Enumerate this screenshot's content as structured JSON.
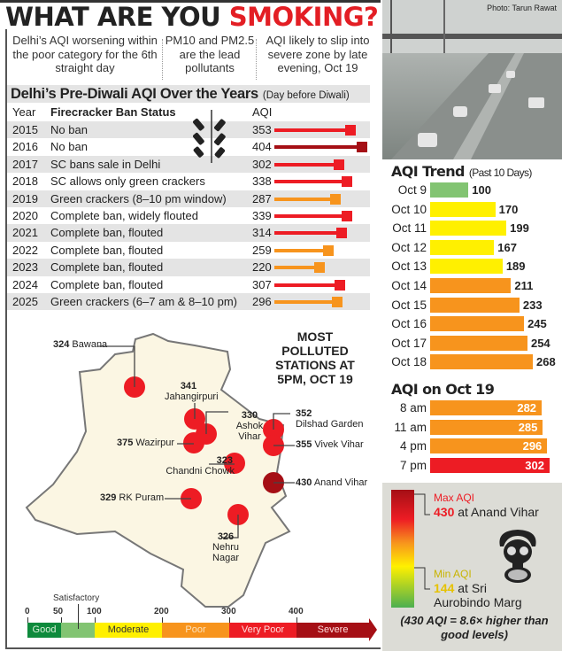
{
  "header": {
    "title_a": "WHAT ARE YOU ",
    "title_b": "SMOKING?"
  },
  "bullets": [
    "Delhi’s AQI worsening within the poor category for the 6th straight day",
    "PM10 and PM2.5 are the lead pollutants",
    "AQI likely to slip into severe zone by late evening, Oct 19"
  ],
  "photo": {
    "credit": "Photo: Tarun Rawat"
  },
  "colors": {
    "good": "#0e8a3c",
    "satisfactory": "#82c472",
    "moderate": "#fff000",
    "poor": "#f7941d",
    "very_poor": "#ed1c24",
    "severe": "#a50f15"
  },
  "chart_data": [
    {
      "type": "table",
      "title": "Delhi’s Pre-Diwali AQI Over the Years",
      "subtitle": "(Day before Diwali)",
      "columns": [
        "Year",
        "Firecracker Ban Status",
        "AQI"
      ],
      "rows": [
        {
          "year": "2015",
          "status": "No ban",
          "aqi": 353
        },
        {
          "year": "2016",
          "status": "No ban",
          "aqi": 404
        },
        {
          "year": "2017",
          "status": "SC bans sale in Delhi",
          "aqi": 302
        },
        {
          "year": "2018",
          "status": "SC allows only green crackers",
          "aqi": 338
        },
        {
          "year": "2019",
          "status": "Green crackers (8–10 pm window)",
          "aqi": 287
        },
        {
          "year": "2020",
          "status": "Complete ban, widely flouted",
          "aqi": 339
        },
        {
          "year": "2021",
          "status": "Complete ban, flouted",
          "aqi": 314
        },
        {
          "year": "2022",
          "status": "Complete ban, flouted",
          "aqi": 259
        },
        {
          "year": "2023",
          "status": "Complete ban, flouted",
          "aqi": 220
        },
        {
          "year": "2024",
          "status": "Complete ban, flouted",
          "aqi": 307
        },
        {
          "year": "2025",
          "status": "Green crackers (6–7 am & 8–10 pm)",
          "aqi": 296
        }
      ]
    },
    {
      "type": "bar",
      "title": "AQI Trend",
      "subtitle": "(Past 10 Days)",
      "categories": [
        "Oct 9",
        "Oct 10",
        "Oct 11",
        "Oct 12",
        "Oct 13",
        "Oct 14",
        "Oct 15",
        "Oct 16",
        "Oct 17",
        "Oct 18"
      ],
      "values": [
        100,
        170,
        199,
        167,
        189,
        211,
        233,
        245,
        254,
        268
      ]
    },
    {
      "type": "bar",
      "title": "AQI on Oct 19",
      "categories": [
        "8 am",
        "11 am",
        "4 pm",
        "7 pm"
      ],
      "values": [
        282,
        285,
        296,
        302
      ]
    },
    {
      "type": "scatter",
      "title": "MOST POLLUTED STATIONS AT 5PM, OCT 19",
      "stations": [
        {
          "name": "Bawana",
          "aqi": 324
        },
        {
          "name": "Jahangirpuri",
          "aqi": 341
        },
        {
          "name": "Ashok Vihar",
          "aqi": 330
        },
        {
          "name": "Wazirpur",
          "aqi": 375
        },
        {
          "name": "Chandni Chowk",
          "aqi": 323
        },
        {
          "name": "Dilshad Garden",
          "aqi": 352
        },
        {
          "name": "Vivek Vihar",
          "aqi": 355
        },
        {
          "name": "Anand Vihar",
          "aqi": 430
        },
        {
          "name": "RK Puram",
          "aqi": 329
        },
        {
          "name": "Nehru Nagar",
          "aqi": 326
        }
      ]
    },
    {
      "type": "bar",
      "title": "AQI scale",
      "ticks": [
        0,
        50,
        100,
        200,
        300,
        400
      ],
      "categories": [
        "Good",
        "Satisfactory",
        "Moderate",
        "Poor",
        "Very Poor",
        "Severe"
      ]
    }
  ],
  "extremes": {
    "max_label": "Max AQI",
    "max_value": "430",
    "max_place": "at Anand Vihar",
    "min_label": "Min AQI",
    "min_value": "144",
    "min_place_a": "at Sri",
    "min_place_b": "Aurobindo Marg",
    "note": "(430 AQI = 8.6× higher than good levels)"
  }
}
